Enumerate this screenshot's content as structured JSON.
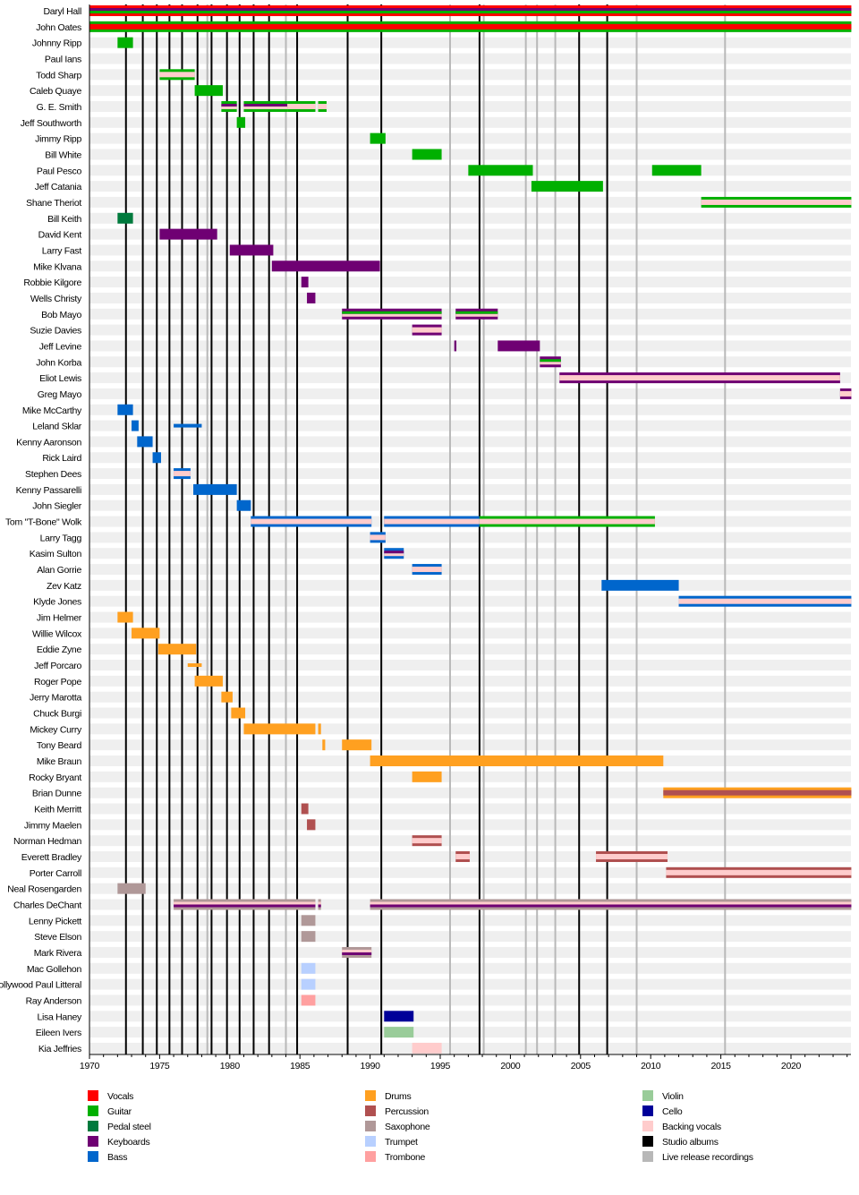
{
  "chart_data": {
    "type": "timeline",
    "xlim": [
      1970,
      2024.3
    ],
    "x_ticks": [
      1970,
      1975,
      1980,
      1985,
      1990,
      1995,
      2000,
      2005,
      2010,
      2015,
      2020
    ],
    "colors": {
      "V": "#ff0000",
      "G": "#00b000",
      "PS": "#007a3d",
      "K": "#6f0073",
      "B": "#0066cc",
      "D": "#ffa020",
      "P": "#b05050",
      "S": "#b09898",
      "T": "#b8d0ff",
      "Tb": "#ffa0a0",
      "Vn": "#99cc99",
      "C": "#000099",
      "BV": "#ffcccc",
      "studio": "#000000",
      "live": "#b8b8b8"
    },
    "legend": [
      {
        "key": "V",
        "label": "Vocals"
      },
      {
        "key": "G",
        "label": "Guitar"
      },
      {
        "key": "PS",
        "label": "Pedal steel"
      },
      {
        "key": "K",
        "label": "Keyboards"
      },
      {
        "key": "B",
        "label": "Bass"
      },
      {
        "key": "D",
        "label": "Drums"
      },
      {
        "key": "P",
        "label": "Percussion"
      },
      {
        "key": "S",
        "label": "Saxophone"
      },
      {
        "key": "T",
        "label": "Trumpet"
      },
      {
        "key": "Tb",
        "label": "Trombone"
      },
      {
        "key": "Vn",
        "label": "Violin"
      },
      {
        "key": "C",
        "label": "Cello"
      },
      {
        "key": "BV",
        "label": "Backing vocals"
      },
      {
        "key": "studio",
        "label": "Studio albums"
      },
      {
        "key": "live",
        "label": "Live release recordings"
      }
    ],
    "studio_albums": [
      1972.6,
      1973.8,
      1974.8,
      1975.7,
      1976.6,
      1977.7,
      1978.7,
      1979.8,
      1980.7,
      1981.7,
      1982.8,
      1984.8,
      1988.4,
      1990.8,
      1997.8,
      2004.9,
      2006.9
    ],
    "live_releases": [
      1978.4,
      1984.0,
      1995.7,
      1998.1,
      2001.1,
      2001.9,
      2003.2,
      2009.0,
      2015.3
    ],
    "members": [
      {
        "name": "Daryl Hall",
        "periods": [
          [
            1970,
            2024.3,
            [
              "V",
              "K",
              "G"
            ]
          ]
        ]
      },
      {
        "name": "John Oates",
        "periods": [
          [
            1970,
            2024.3,
            [
              "G",
              "V"
            ]
          ]
        ]
      },
      {
        "name": "Johnny Ripp",
        "periods": [
          [
            1972.0,
            1973.1,
            [
              "G"
            ]
          ]
        ]
      },
      {
        "name": "Paul Ians",
        "periods": []
      },
      {
        "name": "Todd Sharp",
        "periods": [
          [
            1975.0,
            1977.5,
            [
              "G",
              "BV"
            ]
          ]
        ]
      },
      {
        "name": "Caleb Quaye",
        "periods": [
          [
            1977.5,
            1979.5,
            [
              "G"
            ]
          ]
        ]
      },
      {
        "name": "G. E. Smith",
        "periods": [
          [
            1979.4,
            1980.5,
            [
              "G",
              "K",
              "BV"
            ]
          ],
          [
            1981.0,
            1984.1,
            [
              "G",
              "K",
              "BV"
            ]
          ],
          [
            1984.1,
            1986.1,
            [
              "G",
              "BV"
            ]
          ],
          [
            1986.3,
            1986.9,
            [
              "G",
              "BV"
            ]
          ]
        ]
      },
      {
        "name": "Jeff Southworth",
        "periods": [
          [
            1980.5,
            1981.1,
            [
              "G"
            ]
          ]
        ]
      },
      {
        "name": "Jimmy Ripp",
        "periods": [
          [
            1990.0,
            1991.1,
            [
              "G"
            ]
          ]
        ]
      },
      {
        "name": "Bill White",
        "periods": [
          [
            1993.0,
            1995.1,
            [
              "G"
            ]
          ]
        ]
      },
      {
        "name": "Paul Pesco",
        "periods": [
          [
            1997.0,
            2001.6,
            [
              "G"
            ]
          ],
          [
            2010.1,
            2013.6,
            [
              "G"
            ]
          ]
        ]
      },
      {
        "name": "Jeff Catania",
        "periods": [
          [
            2001.5,
            2006.6,
            [
              "G"
            ]
          ]
        ]
      },
      {
        "name": "Shane Theriot",
        "periods": [
          [
            2013.6,
            2024.3,
            [
              "G",
              "BV"
            ]
          ]
        ]
      },
      {
        "name": "Bill Keith",
        "periods": [
          [
            1972.0,
            1973.1,
            [
              "PS"
            ]
          ]
        ]
      },
      {
        "name": "David Kent",
        "periods": [
          [
            1975.0,
            1979.1,
            [
              "K"
            ]
          ]
        ]
      },
      {
        "name": "Larry Fast",
        "periods": [
          [
            1980.0,
            1983.1,
            [
              "K"
            ]
          ]
        ]
      },
      {
        "name": "Mike Klvana",
        "periods": [
          [
            1983.0,
            1990.7,
            [
              "K"
            ]
          ]
        ]
      },
      {
        "name": "Robbie Kilgore",
        "periods": [
          [
            1985.1,
            1985.6,
            [
              "K"
            ]
          ]
        ]
      },
      {
        "name": "Wells Christy",
        "periods": [
          [
            1985.5,
            1986.1,
            [
              "K"
            ]
          ]
        ]
      },
      {
        "name": "Bob Mayo",
        "periods": [
          [
            1988.0,
            1995.1,
            [
              "K",
              "G",
              "BV"
            ]
          ],
          [
            1996.1,
            1999.1,
            [
              "K",
              "G",
              "BV"
            ]
          ]
        ]
      },
      {
        "name": "Suzie Davies",
        "periods": [
          [
            1993.0,
            1995.1,
            [
              "K",
              "BV"
            ]
          ]
        ]
      },
      {
        "name": "Jeff Levine",
        "periods": [
          [
            1996.0,
            1996.15,
            [
              "K"
            ]
          ],
          [
            1999.1,
            2002.1,
            [
              "K"
            ]
          ]
        ]
      },
      {
        "name": "John Korba",
        "periods": [
          [
            2002.1,
            2003.6,
            [
              "K",
              "G",
              "BV"
            ]
          ]
        ]
      },
      {
        "name": "Eliot Lewis",
        "periods": [
          [
            2003.5,
            2023.5,
            [
              "K",
              "BV"
            ]
          ]
        ]
      },
      {
        "name": "Greg Mayo",
        "periods": [
          [
            2023.5,
            2024.3,
            [
              "K",
              "BV"
            ]
          ]
        ]
      },
      {
        "name": "Mike McCarthy",
        "periods": [
          [
            1972.0,
            1973.1,
            [
              "B"
            ]
          ]
        ]
      },
      {
        "name": "Leland Sklar",
        "periods": [
          [
            1973.0,
            1973.5,
            [
              "B"
            ]
          ],
          [
            1976.0,
            1978.0,
            [
              "B"
            ]
          ]
        ]
      },
      {
        "name": "Kenny Aaronson",
        "periods": [
          [
            1973.4,
            1974.5,
            [
              "B"
            ]
          ]
        ]
      },
      {
        "name": "Rick Laird",
        "periods": [
          [
            1974.5,
            1975.1,
            [
              "B"
            ]
          ]
        ]
      },
      {
        "name": "Stephen Dees",
        "periods": [
          [
            1976.0,
            1977.2,
            [
              "B",
              "BV"
            ]
          ]
        ]
      },
      {
        "name": "Kenny Passarelli",
        "periods": [
          [
            1977.4,
            1980.5,
            [
              "B"
            ]
          ]
        ]
      },
      {
        "name": "John Siegler",
        "periods": [
          [
            1980.5,
            1981.5,
            [
              "B"
            ]
          ]
        ]
      },
      {
        "name": "Tom \"T-Bone\" Wolk",
        "periods": [
          [
            1981.5,
            1990.1,
            [
              "B",
              "BV"
            ]
          ],
          [
            1991.0,
            1997.8,
            [
              "B",
              "BV"
            ]
          ],
          [
            1997.8,
            2010.3,
            [
              "G",
              "BV"
            ]
          ]
        ]
      },
      {
        "name": "Larry Tagg",
        "periods": [
          [
            1990.0,
            1991.1,
            [
              "B",
              "BV"
            ]
          ]
        ]
      },
      {
        "name": "Kasim Sulton",
        "periods": [
          [
            1991.0,
            1992.4,
            [
              "B",
              "K",
              "BV"
            ]
          ]
        ]
      },
      {
        "name": "Alan Gorrie",
        "periods": [
          [
            1993.0,
            1995.1,
            [
              "B",
              "BV"
            ]
          ]
        ]
      },
      {
        "name": "Zev Katz",
        "periods": [
          [
            2006.5,
            2012.0,
            [
              "B"
            ]
          ]
        ]
      },
      {
        "name": "Klyde Jones",
        "periods": [
          [
            2012.0,
            2024.3,
            [
              "B",
              "BV"
            ]
          ]
        ]
      },
      {
        "name": "Jim Helmer",
        "periods": [
          [
            1972.0,
            1973.1,
            [
              "D"
            ]
          ]
        ]
      },
      {
        "name": "Willie Wilcox",
        "periods": [
          [
            1973.0,
            1975.0,
            [
              "D"
            ]
          ]
        ]
      },
      {
        "name": "Eddie Zyne",
        "periods": [
          [
            1974.9,
            1977.6,
            [
              "D"
            ]
          ]
        ]
      },
      {
        "name": "Jeff Porcaro",
        "periods": [
          [
            1977.0,
            1978.0,
            [
              "D"
            ]
          ]
        ]
      },
      {
        "name": "Roger Pope",
        "periods": [
          [
            1977.5,
            1979.5,
            [
              "D"
            ]
          ]
        ]
      },
      {
        "name": "Jerry Marotta",
        "periods": [
          [
            1979.4,
            1980.2,
            [
              "D"
            ]
          ]
        ]
      },
      {
        "name": "Chuck Burgi",
        "periods": [
          [
            1980.1,
            1981.1,
            [
              "D"
            ]
          ]
        ]
      },
      {
        "name": "Mickey Curry",
        "periods": [
          [
            1981.0,
            1986.1,
            [
              "D"
            ]
          ],
          [
            1986.3,
            1986.5,
            [
              "D"
            ]
          ]
        ]
      },
      {
        "name": "Tony Beard",
        "periods": [
          [
            1986.6,
            1986.8,
            [
              "D"
            ]
          ],
          [
            1988.0,
            1990.1,
            [
              "D"
            ]
          ]
        ]
      },
      {
        "name": "Mike Braun",
        "periods": [
          [
            1990.0,
            2010.9,
            [
              "D"
            ]
          ]
        ]
      },
      {
        "name": "Rocky Bryant",
        "periods": [
          [
            1993.0,
            1995.1,
            [
              "D"
            ]
          ]
        ]
      },
      {
        "name": "Brian Dunne",
        "periods": [
          [
            2010.9,
            2024.3,
            [
              "D",
              "P"
            ]
          ]
        ]
      },
      {
        "name": "Keith Merritt",
        "periods": [
          [
            1985.1,
            1985.6,
            [
              "P"
            ]
          ]
        ]
      },
      {
        "name": "Jimmy Maelen",
        "periods": [
          [
            1985.5,
            1986.1,
            [
              "P"
            ]
          ]
        ]
      },
      {
        "name": "Norman Hedman",
        "periods": [
          [
            1993.0,
            1995.1,
            [
              "P",
              "BV"
            ]
          ]
        ]
      },
      {
        "name": "Everett Bradley",
        "periods": [
          [
            1996.1,
            1997.1,
            [
              "P",
              "BV"
            ]
          ],
          [
            2006.1,
            2011.2,
            [
              "P",
              "BV"
            ]
          ]
        ]
      },
      {
        "name": "Porter Carroll",
        "periods": [
          [
            2011.1,
            2024.3,
            [
              "P",
              "BV"
            ]
          ]
        ]
      },
      {
        "name": "Neal Rosengarden",
        "periods": [
          [
            1972.0,
            1974.0,
            [
              "S"
            ]
          ]
        ]
      },
      {
        "name": "Charles DeChant",
        "periods": [
          [
            1976.0,
            1986.1,
            [
              "S",
              "BV",
              "K"
            ]
          ],
          [
            1986.3,
            1986.5,
            [
              "S",
              "BV",
              "K"
            ]
          ],
          [
            1990.0,
            2024.3,
            [
              "S",
              "BV",
              "K"
            ]
          ]
        ]
      },
      {
        "name": "Lenny Pickett",
        "periods": [
          [
            1985.1,
            1986.1,
            [
              "S"
            ]
          ]
        ]
      },
      {
        "name": "Steve Elson",
        "periods": [
          [
            1985.1,
            1986.1,
            [
              "S"
            ]
          ]
        ]
      },
      {
        "name": "Mark Rivera",
        "periods": [
          [
            1988.0,
            1990.1,
            [
              "S",
              "BV",
              "K"
            ]
          ]
        ]
      },
      {
        "name": "Mac Gollehon",
        "periods": [
          [
            1985.1,
            1986.1,
            [
              "T"
            ]
          ]
        ]
      },
      {
        "name": "Hollywood Paul Litteral",
        "periods": [
          [
            1985.1,
            1986.1,
            [
              "T"
            ]
          ]
        ]
      },
      {
        "name": "Ray Anderson",
        "periods": [
          [
            1985.1,
            1986.1,
            [
              "Tb"
            ]
          ]
        ]
      },
      {
        "name": "Lisa Haney",
        "periods": [
          [
            1991.0,
            1993.1,
            [
              "C"
            ]
          ]
        ]
      },
      {
        "name": "Eileen Ivers",
        "periods": [
          [
            1991.0,
            1993.1,
            [
              "Vn"
            ]
          ]
        ]
      },
      {
        "name": "Kia Jeffries",
        "periods": [
          [
            1993.0,
            1995.1,
            [
              "BV"
            ]
          ]
        ]
      }
    ]
  }
}
